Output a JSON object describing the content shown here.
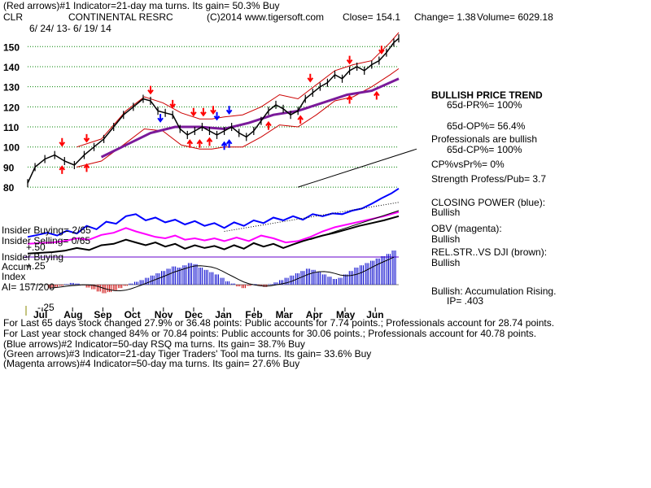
{
  "header": {
    "line1": "(Red arrows)#1 Indicator=21-day ma turns. Its gain= 50.3% Buy",
    "ticker": "CLR",
    "company": "CONTINENTAL RESRC",
    "copyright": "(C)2014 www.tigersoft.com",
    "close": "Close=  154.1",
    "change": "Change= 1.38",
    "volume": "Volume= 6029.18",
    "date_range": "6/ 24/ 13-  6/ 19/ 14"
  },
  "panel_right": {
    "trend_title": "BULLISH PRICE TREND",
    "pr": "65d-PR%= 100%",
    "op": "65d-OP%= 56.4%",
    "pros": "Professionals are bullish",
    "cp": "65d-CP%= 100%",
    "cpvspr": "CP%vsPr%=  0%",
    "strength": "Strength Profess/Pub= 3.7",
    "closing_power": "CLOSING POWER (blue):",
    "closing_power_val": "Bullish",
    "obv": "OBV (magenta):",
    "obv_val": "Bullish",
    "relstr": "REL.STR..VS DJI (brown):",
    "relstr_val": "Bullish",
    "accum": "Bullish: Accumulation Rising.",
    "ip": "IP=  .403"
  },
  "panel_left": {
    "insider_buying": "Insider Buying= 2/65",
    "insider_selling": "Insider Selling= 0/65",
    "insider_buying2": "Insider Buying",
    "accum": "Accum",
    "accum_top": "+.50",
    "accum_mid": "+.25",
    "index": "Index",
    "ai": "AI= 157/200",
    "accum_bottom": "-.25"
  },
  "footer": {
    "l1": "For Last 65 days stock changed  27.9% or  36.48 points:  Public accounts for  7.74 points.;  Professionals account for  28.74 points.",
    "l2": "For Last year stock changed  84% or  70.84 points:  Public accounts for  30.06 points.;  Professionals account for  40.78 points.",
    "l3": "(Blue arrows)#2 Indicator=50-day RSQ ma turns. Its gain= 38.7% Buy",
    "l4": "(Green arrows)#3 Indicator=21-day Tiger Traders' Tool ma turns. Its gain= 33.6% Buy",
    "l5": "(Magenta arrows)#4 Indicator=50-day ma turns. Its gain= 27.6% Buy"
  },
  "colors": {
    "price": "#000000",
    "band": "#cc0000",
    "ma": "#7a1a9a",
    "closing_power": "#0000ff",
    "obv": "#ff00ff",
    "relstr": "#000000",
    "accum_pos": "#0000cc",
    "accum_neg": "#cc0000",
    "grid": "#008000",
    "zero_line": "#6600cc",
    "arrow_red": "#ff0000",
    "arrow_blue": "#0000ff"
  },
  "chart_data": {
    "type": "line",
    "y_ticks": [
      150,
      140,
      130,
      120,
      110,
      100,
      90,
      80
    ],
    "x_ticks": [
      "Jul",
      "Aug",
      "Sep",
      "Oct",
      "Nov",
      "Dec",
      "Jan",
      "Feb",
      "Mar",
      "Apr",
      "May",
      "Jun"
    ],
    "ylim": [
      76,
      157
    ],
    "price": [
      [
        0,
        82
      ],
      [
        6,
        90
      ],
      [
        14,
        94
      ],
      [
        22,
        96
      ],
      [
        30,
        93
      ],
      [
        38,
        91
      ],
      [
        46,
        96
      ],
      [
        54,
        100
      ],
      [
        62,
        104
      ],
      [
        70,
        110
      ],
      [
        78,
        116
      ],
      [
        86,
        120
      ],
      [
        94,
        124
      ],
      [
        100,
        123
      ],
      [
        106,
        118
      ],
      [
        112,
        117
      ],
      [
        118,
        116
      ],
      [
        124,
        109
      ],
      [
        130,
        106
      ],
      [
        136,
        108
      ],
      [
        142,
        110
      ],
      [
        148,
        108
      ],
      [
        154,
        106
      ],
      [
        160,
        108
      ],
      [
        166,
        110
      ],
      [
        172,
        107
      ],
      [
        178,
        105
      ],
      [
        184,
        108
      ],
      [
        190,
        113
      ],
      [
        196,
        118
      ],
      [
        202,
        121
      ],
      [
        208,
        119
      ],
      [
        214,
        116
      ],
      [
        220,
        118
      ],
      [
        226,
        124
      ],
      [
        232,
        127
      ],
      [
        238,
        130
      ],
      [
        244,
        132
      ],
      [
        250,
        136
      ],
      [
        256,
        134
      ],
      [
        262,
        138
      ],
      [
        268,
        140
      ],
      [
        274,
        138
      ],
      [
        280,
        141
      ],
      [
        286,
        143
      ],
      [
        292,
        147
      ],
      [
        298,
        152
      ],
      [
        302,
        154.1
      ]
    ],
    "upper_band": [
      [
        40,
        100
      ],
      [
        60,
        104
      ],
      [
        80,
        118
      ],
      [
        95,
        125
      ],
      [
        110,
        122
      ],
      [
        125,
        117
      ],
      [
        140,
        114
      ],
      [
        150,
        114
      ],
      [
        160,
        115
      ],
      [
        175,
        116
      ],
      [
        190,
        120
      ],
      [
        205,
        126
      ],
      [
        220,
        124
      ],
      [
        235,
        131
      ],
      [
        250,
        138
      ],
      [
        265,
        141
      ],
      [
        280,
        143
      ],
      [
        295,
        152
      ],
      [
        302,
        157
      ]
    ],
    "lower_band": [
      [
        40,
        90
      ],
      [
        60,
        93
      ],
      [
        80,
        102
      ],
      [
        95,
        109
      ],
      [
        110,
        108
      ],
      [
        125,
        101
      ],
      [
        140,
        99
      ],
      [
        150,
        99
      ],
      [
        160,
        100
      ],
      [
        175,
        100
      ],
      [
        190,
        105
      ],
      [
        205,
        111
      ],
      [
        220,
        110
      ],
      [
        235,
        116
      ],
      [
        250,
        123
      ],
      [
        265,
        125
      ],
      [
        280,
        130
      ],
      [
        295,
        136
      ],
      [
        302,
        139
      ]
    ],
    "ma50": [
      [
        60,
        95
      ],
      [
        80,
        101
      ],
      [
        100,
        107
      ],
      [
        120,
        110
      ],
      [
        140,
        110
      ],
      [
        160,
        109
      ],
      [
        180,
        112
      ],
      [
        200,
        116
      ],
      [
        220,
        118
      ],
      [
        240,
        122
      ],
      [
        260,
        126
      ],
      [
        280,
        128
      ],
      [
        302,
        134
      ]
    ],
    "closing_power": [
      [
        0,
        0.22
      ],
      [
        8,
        0.25
      ],
      [
        16,
        0.28
      ],
      [
        24,
        0.24
      ],
      [
        32,
        0.31
      ],
      [
        40,
        0.27
      ],
      [
        48,
        0.38
      ],
      [
        56,
        0.33
      ],
      [
        64,
        0.44
      ],
      [
        72,
        0.41
      ],
      [
        80,
        0.52
      ],
      [
        88,
        0.55
      ],
      [
        96,
        0.46
      ],
      [
        104,
        0.5
      ],
      [
        112,
        0.43
      ],
      [
        120,
        0.47
      ],
      [
        128,
        0.4
      ],
      [
        136,
        0.45
      ],
      [
        144,
        0.38
      ],
      [
        152,
        0.42
      ],
      [
        160,
        0.35
      ],
      [
        168,
        0.43
      ],
      [
        176,
        0.38
      ],
      [
        184,
        0.46
      ],
      [
        192,
        0.42
      ],
      [
        200,
        0.5
      ],
      [
        208,
        0.46
      ],
      [
        216,
        0.52
      ],
      [
        224,
        0.47
      ],
      [
        232,
        0.55
      ],
      [
        240,
        0.52
      ],
      [
        248,
        0.56
      ],
      [
        256,
        0.55
      ],
      [
        264,
        0.6
      ],
      [
        272,
        0.63
      ],
      [
        280,
        0.7
      ],
      [
        288,
        0.78
      ],
      [
        296,
        0.85
      ],
      [
        302,
        0.92
      ]
    ],
    "obv": [
      [
        0,
        0.12
      ],
      [
        10,
        0.13
      ],
      [
        20,
        0.14
      ],
      [
        30,
        0.16
      ],
      [
        40,
        0.2
      ],
      [
        50,
        0.18
      ],
      [
        60,
        0.25
      ],
      [
        70,
        0.28
      ],
      [
        80,
        0.35
      ],
      [
        88,
        0.3
      ],
      [
        96,
        0.26
      ],
      [
        104,
        0.22
      ],
      [
        112,
        0.2
      ],
      [
        120,
        0.24
      ],
      [
        128,
        0.18
      ],
      [
        136,
        0.2
      ],
      [
        144,
        0.17
      ],
      [
        152,
        0.2
      ],
      [
        160,
        0.16
      ],
      [
        170,
        0.21
      ],
      [
        180,
        0.16
      ],
      [
        190,
        0.24
      ],
      [
        200,
        0.2
      ],
      [
        210,
        0.14
      ],
      [
        220,
        0.16
      ],
      [
        230,
        0.22
      ],
      [
        240,
        0.3
      ],
      [
        250,
        0.36
      ],
      [
        260,
        0.4
      ],
      [
        270,
        0.44
      ],
      [
        280,
        0.48
      ],
      [
        290,
        0.52
      ],
      [
        302,
        0.58
      ]
    ],
    "relstr": [
      [
        0,
        -0.02
      ],
      [
        10,
        -0.01
      ],
      [
        20,
        0.0
      ],
      [
        30,
        0.02
      ],
      [
        40,
        0.06
      ],
      [
        50,
        0.03
      ],
      [
        60,
        0.1
      ],
      [
        70,
        0.12
      ],
      [
        80,
        0.18
      ],
      [
        88,
        0.14
      ],
      [
        96,
        0.1
      ],
      [
        104,
        0.14
      ],
      [
        112,
        0.08
      ],
      [
        120,
        0.12
      ],
      [
        128,
        0.05
      ],
      [
        136,
        0.1
      ],
      [
        144,
        0.06
      ],
      [
        152,
        0.09
      ],
      [
        160,
        0.04
      ],
      [
        168,
        0.1
      ],
      [
        176,
        0.05
      ],
      [
        184,
        0.13
      ],
      [
        192,
        0.08
      ],
      [
        200,
        0.12
      ],
      [
        208,
        0.06
      ],
      [
        216,
        0.11
      ],
      [
        224,
        0.16
      ],
      [
        232,
        0.2
      ],
      [
        240,
        0.24
      ],
      [
        250,
        0.28
      ],
      [
        260,
        0.33
      ],
      [
        270,
        0.38
      ],
      [
        280,
        0.42
      ],
      [
        290,
        0.46
      ],
      [
        302,
        0.52
      ]
    ],
    "accumulation": [
      -0.06,
      -0.04,
      -0.02,
      0.01,
      0.03,
      0.02,
      -0.01,
      -0.05,
      -0.08,
      -0.12,
      -0.15,
      -0.13,
      -0.1,
      -0.06,
      -0.02,
      0.02,
      0.05,
      0.08,
      0.12,
      0.16,
      0.2,
      0.24,
      0.28,
      0.32,
      0.3,
      0.34,
      0.38,
      0.36,
      0.3,
      0.26,
      0.22,
      0.18,
      0.12,
      0.06,
      0.02,
      -0.03,
      -0.06,
      -0.02,
      0.01,
      -0.02,
      -0.04,
      0.01,
      0.04,
      0.08,
      0.12,
      0.16,
      0.2,
      0.24,
      0.28,
      0.26,
      0.22,
      0.18,
      0.14,
      0.1,
      0.12,
      0.18,
      0.24,
      0.3,
      0.34,
      0.38,
      0.42,
      0.46,
      0.5,
      0.54,
      0.6
    ],
    "arrows_red_down": [
      [
        28,
        102
      ],
      [
        48,
        104
      ],
      [
        100,
        128
      ],
      [
        118,
        121
      ],
      [
        135,
        117
      ],
      [
        143,
        117
      ],
      [
        151,
        118
      ],
      [
        230,
        134
      ],
      [
        262,
        143
      ],
      [
        288,
        148
      ]
    ],
    "arrows_red_up": [
      [
        28,
        89
      ],
      [
        48,
        90
      ],
      [
        132,
        102
      ],
      [
        140,
        102
      ],
      [
        148,
        103
      ],
      [
        196,
        111
      ],
      [
        222,
        114
      ],
      [
        262,
        124
      ],
      [
        284,
        126
      ]
    ],
    "arrows_blue_down": [
      [
        108,
        114
      ],
      [
        154,
        115
      ],
      [
        164,
        118
      ]
    ],
    "arrows_blue_up": [
      [
        160,
        101
      ],
      [
        164,
        102
      ]
    ]
  }
}
